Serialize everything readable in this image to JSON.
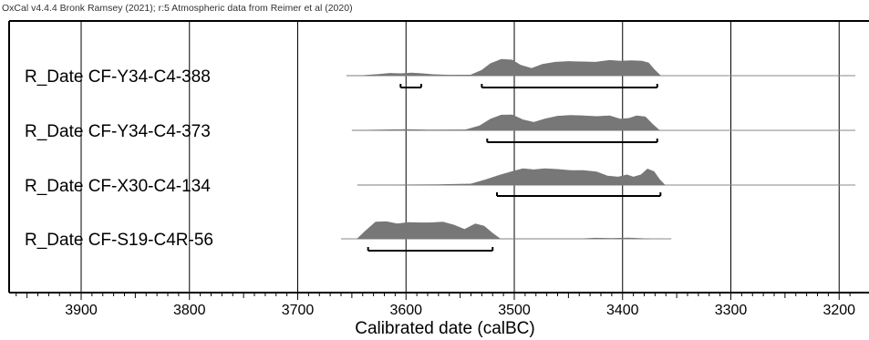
{
  "header": {
    "text": "OxCal v4.4.4 Bronk Ramsey (2021); r:5 Atmospheric data from Reimer et al (2020)"
  },
  "chart_data": {
    "type": "area",
    "xlabel": "Calibrated date (calBC)",
    "xlim": [
      3965,
      3185
    ],
    "x_reversed": true,
    "major_ticks": [
      3900,
      3800,
      3700,
      3600,
      3500,
      3400,
      3300,
      3200
    ],
    "tick_labels": [
      "3900",
      "3800",
      "3700",
      "3600",
      "3500",
      "3400",
      "3300",
      "3200"
    ],
    "minor_tick_step": 10,
    "grid": true,
    "colors": {
      "fill": "#777777",
      "line": "#888888",
      "grid": "#000000",
      "bracket": "#000000"
    },
    "series": [
      {
        "name": "R_Date CF-Y34-C4-388",
        "line_range": [
          3655,
          3185
        ],
        "distribution": [
          [
            3655,
            0.0
          ],
          [
            3640,
            0.01
          ],
          [
            3625,
            0.07
          ],
          [
            3615,
            0.13
          ],
          [
            3605,
            0.11
          ],
          [
            3595,
            0.15
          ],
          [
            3585,
            0.11
          ],
          [
            3575,
            0.06
          ],
          [
            3560,
            0.03
          ],
          [
            3540,
            0.04
          ],
          [
            3530,
            0.3
          ],
          [
            3522,
            0.66
          ],
          [
            3512,
            0.9
          ],
          [
            3502,
            0.86
          ],
          [
            3494,
            0.57
          ],
          [
            3484,
            0.4
          ],
          [
            3474,
            0.62
          ],
          [
            3462,
            0.74
          ],
          [
            3450,
            0.78
          ],
          [
            3438,
            0.76
          ],
          [
            3425,
            0.74
          ],
          [
            3412,
            0.84
          ],
          [
            3402,
            0.8
          ],
          [
            3392,
            0.82
          ],
          [
            3382,
            0.8
          ],
          [
            3376,
            0.7
          ],
          [
            3371,
            0.35
          ],
          [
            3365,
            0.0
          ]
        ],
        "ranges": [
          [
            3605,
            3586
          ],
          [
            3530,
            3368
          ]
        ]
      },
      {
        "name": "R_Date CF-Y34-C4-373",
        "line_range": [
          3650,
          3185
        ],
        "distribution": [
          [
            3650,
            0.0
          ],
          [
            3625,
            0.02
          ],
          [
            3600,
            0.05
          ],
          [
            3580,
            0.02
          ],
          [
            3545,
            0.03
          ],
          [
            3532,
            0.25
          ],
          [
            3522,
            0.62
          ],
          [
            3512,
            0.84
          ],
          [
            3502,
            0.85
          ],
          [
            3492,
            0.58
          ],
          [
            3482,
            0.44
          ],
          [
            3472,
            0.62
          ],
          [
            3460,
            0.78
          ],
          [
            3448,
            0.82
          ],
          [
            3436,
            0.8
          ],
          [
            3424,
            0.76
          ],
          [
            3412,
            0.8
          ],
          [
            3402,
            0.62
          ],
          [
            3394,
            0.66
          ],
          [
            3387,
            0.8
          ],
          [
            3379,
            0.74
          ],
          [
            3372,
            0.32
          ],
          [
            3366,
            0.0
          ]
        ],
        "ranges": [
          [
            3525,
            3368
          ]
        ]
      },
      {
        "name": "R_Date CF-X30-C4-134",
        "line_range": [
          3645,
          3185
        ],
        "distribution": [
          [
            3645,
            0.0
          ],
          [
            3570,
            0.02
          ],
          [
            3540,
            0.06
          ],
          [
            3527,
            0.28
          ],
          [
            3515,
            0.52
          ],
          [
            3502,
            0.74
          ],
          [
            3492,
            0.9
          ],
          [
            3482,
            0.84
          ],
          [
            3472,
            0.9
          ],
          [
            3460,
            0.86
          ],
          [
            3448,
            0.8
          ],
          [
            3436,
            0.8
          ],
          [
            3424,
            0.72
          ],
          [
            3414,
            0.5
          ],
          [
            3404,
            0.44
          ],
          [
            3396,
            0.56
          ],
          [
            3390,
            0.44
          ],
          [
            3383,
            0.56
          ],
          [
            3377,
            0.88
          ],
          [
            3371,
            0.74
          ],
          [
            3366,
            0.32
          ],
          [
            3361,
            0.0
          ]
        ],
        "ranges": [
          [
            3516,
            3365
          ]
        ]
      },
      {
        "name": "R_Date CF-S19-C4R-56",
        "line_range": [
          3660,
          3355
        ],
        "distribution": [
          [
            3645,
            0.0
          ],
          [
            3638,
            0.4
          ],
          [
            3628,
            0.92
          ],
          [
            3618,
            0.94
          ],
          [
            3608,
            0.82
          ],
          [
            3598,
            0.9
          ],
          [
            3588,
            0.88
          ],
          [
            3578,
            0.88
          ],
          [
            3566,
            0.92
          ],
          [
            3556,
            0.76
          ],
          [
            3546,
            0.52
          ],
          [
            3536,
            0.82
          ],
          [
            3528,
            0.7
          ],
          [
            3520,
            0.3
          ],
          [
            3513,
            0.0
          ],
          [
            3440,
            0.0
          ],
          [
            3425,
            0.04
          ],
          [
            3410,
            0.02
          ],
          [
            3395,
            0.05
          ],
          [
            3375,
            0.0
          ]
        ],
        "ranges": [
          [
            3635,
            3520
          ]
        ]
      }
    ]
  }
}
